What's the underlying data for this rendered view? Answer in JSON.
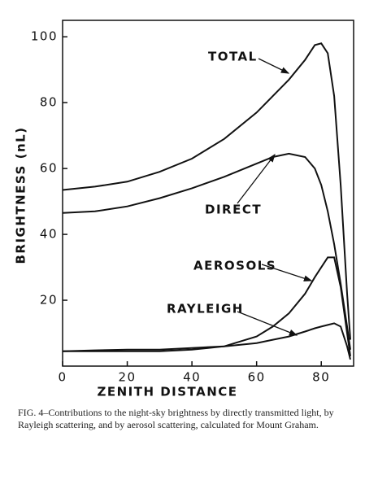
{
  "chart_data": {
    "type": "line",
    "x_label": "ZENITH DISTANCE",
    "y_label": "BRIGHTNESS (nL)",
    "caption": "FIG. 4–Contributions to the night-sky brightness by directly transmitted light, by Rayleigh scattering, and by aerosol scattering, calculated for Mount Graham.",
    "x": [
      0,
      10,
      20,
      30,
      40,
      50,
      60,
      65,
      70,
      75,
      78,
      80,
      82,
      84,
      86,
      88,
      89
    ],
    "series": [
      {
        "name": "TOTAL",
        "color": "#111111",
        "values": [
          53.5,
          54.5,
          56,
          59,
          63,
          69,
          77,
          82,
          87,
          93,
          97.5,
          98,
          95,
          82,
          55,
          22,
          8
        ]
      },
      {
        "name": "DIRECT",
        "color": "#111111",
        "values": [
          46.5,
          47,
          48.5,
          51,
          54,
          57.5,
          61.5,
          63.5,
          64.5,
          63.5,
          60,
          55,
          47,
          37,
          25,
          12,
          5
        ]
      },
      {
        "name": "AEROSOLS",
        "color": "#111111",
        "values": [
          4.5,
          4.5,
          4.5,
          4.5,
          5,
          6,
          9,
          12,
          16,
          22,
          27,
          30,
          33,
          33,
          24,
          10,
          3
        ]
      },
      {
        "name": "RAYLEIGH",
        "color": "#111111",
        "values": [
          4.5,
          4.8,
          5,
          5,
          5.5,
          6,
          7,
          8,
          9,
          10.5,
          11.5,
          12,
          12.5,
          13,
          12,
          6,
          2
        ]
      }
    ],
    "xlim": [
      0,
      90
    ],
    "ylim": [
      0,
      105
    ],
    "xticks": [
      0,
      20,
      40,
      60,
      80
    ],
    "yticks": [
      20,
      40,
      60,
      80,
      100
    ]
  }
}
